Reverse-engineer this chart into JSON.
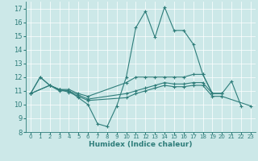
{
  "xlabel": "Humidex (Indice chaleur)",
  "background_color": "#cce8e8",
  "line_color": "#2e7d7a",
  "xlim": [
    -0.5,
    23.5
  ],
  "ylim": [
    8,
    17.5
  ],
  "yticks": [
    8,
    9,
    10,
    11,
    12,
    13,
    14,
    15,
    16,
    17
  ],
  "xticks": [
    0,
    1,
    2,
    3,
    4,
    5,
    6,
    7,
    8,
    9,
    10,
    11,
    12,
    13,
    14,
    15,
    16,
    17,
    18,
    19,
    20,
    21,
    22,
    23
  ],
  "lines": [
    {
      "x": [
        0,
        1,
        2,
        3,
        4,
        5,
        6,
        7,
        8,
        9,
        10,
        11,
        12,
        13,
        14,
        15,
        16,
        17,
        18,
        19,
        20,
        21,
        22
      ],
      "y": [
        10.8,
        12.0,
        11.4,
        11.0,
        11.0,
        10.5,
        10.0,
        8.6,
        8.4,
        9.9,
        12.0,
        15.6,
        16.8,
        14.9,
        17.1,
        15.4,
        15.4,
        14.4,
        12.2,
        10.8,
        10.8,
        11.7,
        9.9
      ]
    },
    {
      "x": [
        0,
        1,
        2,
        3,
        4,
        5,
        6,
        10,
        11,
        12,
        13,
        14,
        15,
        16,
        17,
        18,
        19,
        20
      ],
      "y": [
        10.8,
        12.0,
        11.4,
        11.1,
        11.1,
        10.8,
        10.6,
        11.6,
        12.0,
        12.0,
        12.0,
        12.0,
        12.0,
        12.0,
        12.2,
        12.2,
        10.8,
        10.8
      ]
    },
    {
      "x": [
        0,
        2,
        3,
        4,
        5,
        6,
        10,
        11,
        12,
        13,
        14,
        15,
        16,
        17,
        18,
        19,
        20
      ],
      "y": [
        10.8,
        11.4,
        11.1,
        11.0,
        10.7,
        10.4,
        10.8,
        11.0,
        11.2,
        11.4,
        11.6,
        11.5,
        11.5,
        11.6,
        11.6,
        10.8,
        10.8
      ]
    },
    {
      "x": [
        0,
        2,
        3,
        4,
        5,
        6,
        10,
        11,
        12,
        13,
        14,
        15,
        16,
        17,
        18,
        19,
        20,
        23
      ],
      "y": [
        10.8,
        11.4,
        11.1,
        10.9,
        10.6,
        10.3,
        10.5,
        10.8,
        11.0,
        11.2,
        11.4,
        11.3,
        11.3,
        11.4,
        11.4,
        10.6,
        10.6,
        9.9
      ]
    }
  ]
}
